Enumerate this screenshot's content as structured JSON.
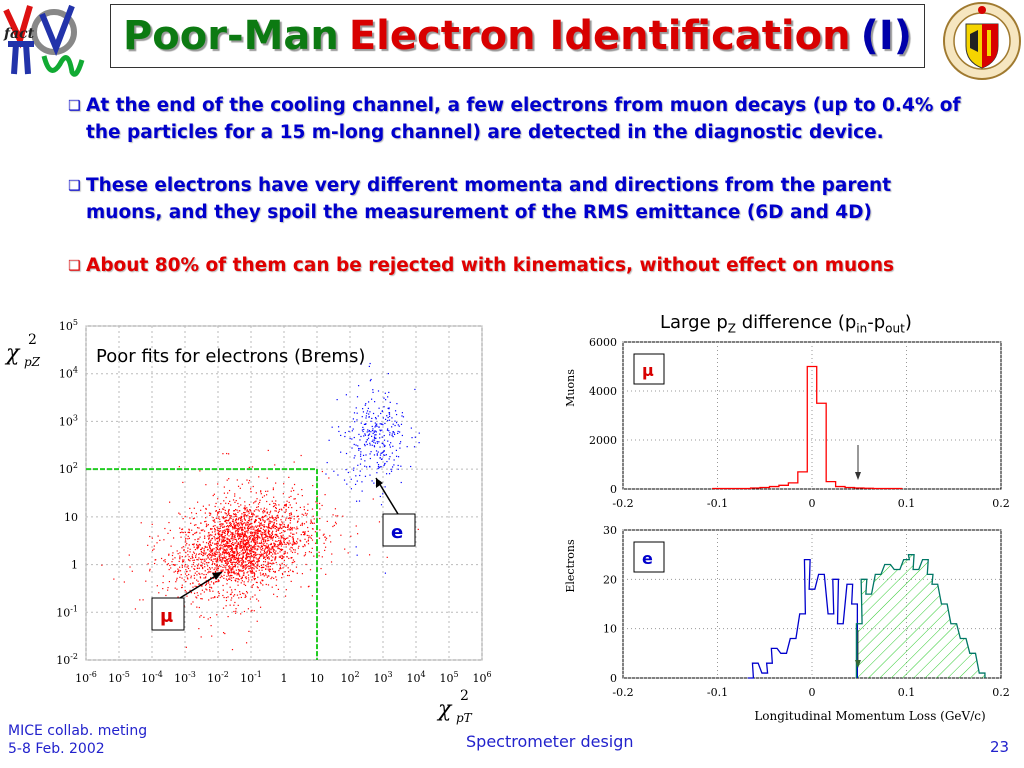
{
  "title": {
    "part1": "Poor-Man",
    "part2": "Electron Identification",
    "part3": "(I)"
  },
  "bullets": [
    {
      "text": "At the end of the cooling channel, a few electrons from muon decays (up to 0.4% of the particles for a 15 m-long channel) are detected in the diagnostic device.",
      "color": "blue"
    },
    {
      "text": "These electrons have very different momenta and directions from the parent muons, and they spoil the measurement of the RMS emittance (6D and 4D)",
      "color": "blue"
    },
    {
      "text": "About 80% of them can be rejected with kinematics, without effect on muons",
      "color": "red"
    }
  ],
  "scatter": {
    "annotation": "Poor fits for electrons (Brems)",
    "xlabel_symbol": "χ",
    "xlabel_sup": "2",
    "xlabel_sub": "pT",
    "ylabel_symbol": "χ",
    "ylabel_sup": "2",
    "ylabel_sub": "pZ",
    "label_e": "e",
    "label_mu": "μ"
  },
  "hist_caption": {
    "prefix": "Large p",
    "sub1": "Z",
    "mid": " difference (p",
    "sub2": "in",
    "dash": "-p",
    "sub3": "out",
    "end": ")"
  },
  "hist_labels": {
    "mu": "μ",
    "e": "e",
    "ylabel_top": "Muons",
    "ylabel_bottom": "Electrons",
    "xlabel": "Longitudinal Momentum Loss (GeV/c)"
  },
  "footer": {
    "left_line1": "MICE collab. meting",
    "left_line2": "5-8 Feb. 2002",
    "center": "Spectrometer design",
    "page": "23"
  },
  "chart_data": [
    {
      "type": "scatter",
      "x_scale": "log",
      "y_scale": "log",
      "xlim": [
        1e-06,
        1000000.0
      ],
      "ylim": [
        0.01,
        100000.0
      ],
      "x_ticks": [
        "10^-6",
        "10^-5",
        "10^-4",
        "10^-3",
        "10^-2",
        "10^-1",
        "1",
        "10",
        "10^2",
        "10^3",
        "10^4",
        "10^5",
        "10^6"
      ],
      "y_ticks": [
        "10^-2",
        "10^-1",
        "1",
        "10",
        "10^2",
        "10^3",
        "10^4",
        "10^5"
      ],
      "cut_lines": {
        "x": 10,
        "y": 100
      },
      "series": [
        {
          "name": "",
          "color": "#ff0000",
          "center": [
            0.05,
            2.5
          ],
          "spread": [
            0.9,
            0.45
          ],
          "count": 2600
        },
        {
          "name": "",
          "color": "#0000ff",
          "center": [
            600,
            400
          ],
          "spread": [
            0.45,
            0.5
          ],
          "count": 320
        }
      ]
    },
    {
      "type": "bar",
      "ylabel": "Muons",
      "xlim": [
        -0.2,
        0.2
      ],
      "ylim": [
        0,
        6000
      ],
      "x_ticks": [
        "-0.2",
        "-0.1",
        "0",
        "0.1",
        "0.2"
      ],
      "y_ticks": [
        "0",
        "2000",
        "4000",
        "6000"
      ],
      "bin_width": 0.01,
      "bins": [
        [
          -0.1,
          20
        ],
        [
          -0.09,
          20
        ],
        [
          -0.08,
          20
        ],
        [
          -0.07,
          20
        ],
        [
          -0.06,
          40
        ],
        [
          -0.05,
          60
        ],
        [
          -0.04,
          100
        ],
        [
          -0.03,
          150
        ],
        [
          -0.02,
          250
        ],
        [
          -0.01,
          700
        ],
        [
          0.0,
          5000
        ],
        [
          0.01,
          3500
        ],
        [
          0.02,
          300
        ],
        [
          0.03,
          100
        ],
        [
          0.04,
          60
        ],
        [
          0.05,
          40
        ],
        [
          0.06,
          30
        ],
        [
          0.07,
          20
        ],
        [
          0.08,
          20
        ],
        [
          0.09,
          20
        ]
      ],
      "color": "#ff0000"
    },
    {
      "type": "bar",
      "ylabel": "Electrons",
      "xlabel": "Longitudinal Momentum Loss (GeV/c)",
      "xlim": [
        -0.2,
        0.2
      ],
      "ylim": [
        0,
        30
      ],
      "x_ticks": [
        "-0.2",
        "-0.1",
        "0",
        "0.1",
        "0.2"
      ],
      "y_ticks": [
        "0",
        "10",
        "20",
        "30"
      ],
      "bin_width": 0.01,
      "series": [
        {
          "name": "",
          "color": "#0000cc",
          "bins": [
            [
              -0.065,
              0
            ],
            [
              -0.06,
              3
            ],
            [
              -0.05,
              1
            ],
            [
              -0.045,
              3
            ],
            [
              -0.04,
              6
            ],
            [
              -0.03,
              5
            ],
            [
              -0.02,
              8
            ],
            [
              -0.01,
              13
            ],
            [
              -0.005,
              24
            ],
            [
              0.0,
              18
            ],
            [
              0.01,
              21
            ],
            [
              0.02,
              13
            ],
            [
              0.025,
              20
            ],
            [
              0.03,
              11
            ],
            [
              0.04,
              19
            ],
            [
              0.045,
              15
            ]
          ]
        },
        {
          "name": "",
          "color": "#007766",
          "bins": [
            [
              0.05,
              11
            ],
            [
              0.055,
              20
            ],
            [
              0.06,
              17
            ],
            [
              0.07,
              21
            ],
            [
              0.08,
              23
            ],
            [
              0.09,
              22
            ],
            [
              0.1,
              24
            ],
            [
              0.105,
              25
            ],
            [
              0.11,
              22
            ],
            [
              0.12,
              24
            ],
            [
              0.125,
              21
            ],
            [
              0.13,
              19
            ],
            [
              0.14,
              15
            ],
            [
              0.15,
              11
            ],
            [
              0.16,
              8
            ],
            [
              0.17,
              5
            ],
            [
              0.18,
              1
            ]
          ]
        }
      ]
    }
  ]
}
